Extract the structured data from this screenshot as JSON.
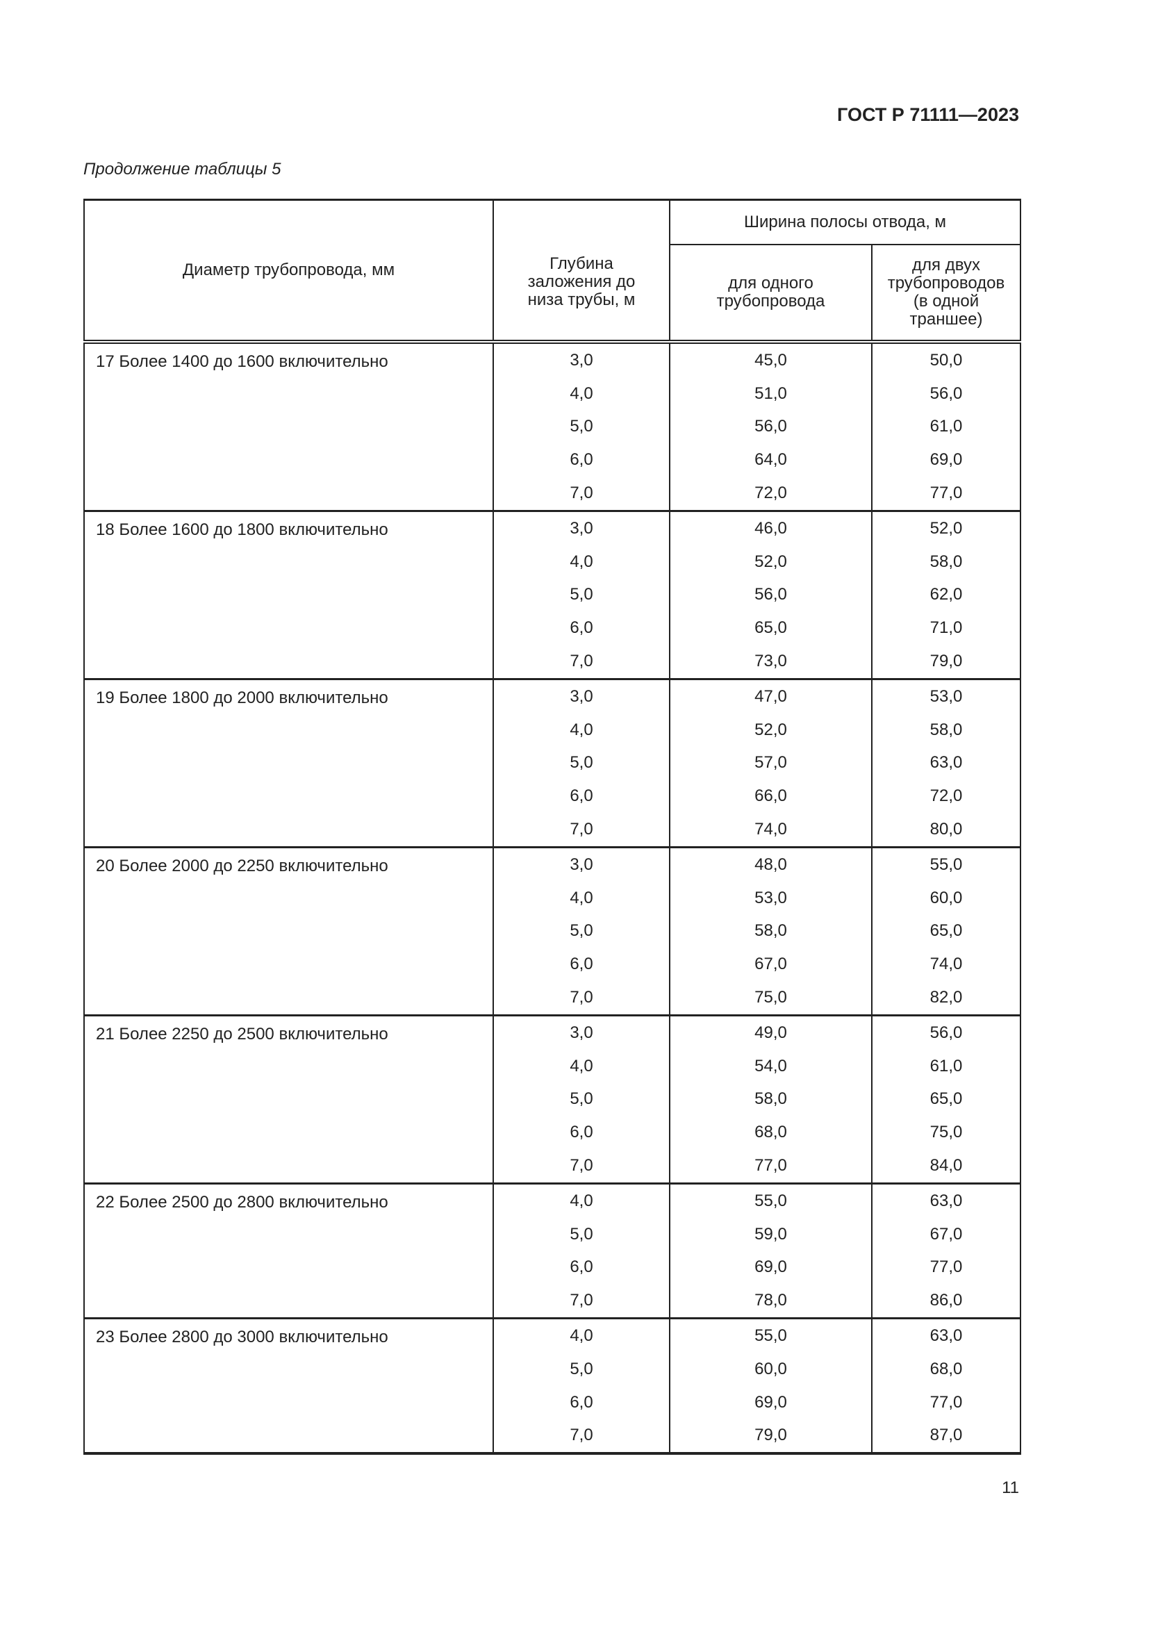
{
  "header": {
    "doc_code": "ГОСТ Р 71111—2023"
  },
  "caption": "Продолжение таблицы 5",
  "table": {
    "headers": {
      "diameter": "Диаметр трубопровода, мм",
      "depth": "Глубина заложения до низа трубы, м",
      "width_group": "Ширина полосы отвода, м",
      "single": "для одного трубопровода",
      "double": "для двух трубопроводов (в одной траншее)"
    },
    "groups": [
      {
        "name": "17  Более 1400 до 1600 включительно",
        "rows": [
          [
            "3,0",
            "45,0",
            "50,0"
          ],
          [
            "4,0",
            "51,0",
            "56,0"
          ],
          [
            "5,0",
            "56,0",
            "61,0"
          ],
          [
            "6,0",
            "64,0",
            "69,0"
          ],
          [
            "7,0",
            "72,0",
            "77,0"
          ]
        ]
      },
      {
        "name": "18  Более 1600 до 1800 включительно",
        "rows": [
          [
            "3,0",
            "46,0",
            "52,0"
          ],
          [
            "4,0",
            "52,0",
            "58,0"
          ],
          [
            "5,0",
            "56,0",
            "62,0"
          ],
          [
            "6,0",
            "65,0",
            "71,0"
          ],
          [
            "7,0",
            "73,0",
            "79,0"
          ]
        ]
      },
      {
        "name": "19  Более 1800 до 2000 включительно",
        "rows": [
          [
            "3,0",
            "47,0",
            "53,0"
          ],
          [
            "4,0",
            "52,0",
            "58,0"
          ],
          [
            "5,0",
            "57,0",
            "63,0"
          ],
          [
            "6,0",
            "66,0",
            "72,0"
          ],
          [
            "7,0",
            "74,0",
            "80,0"
          ]
        ]
      },
      {
        "name": "20  Более 2000 до 2250 включительно",
        "rows": [
          [
            "3,0",
            "48,0",
            "55,0"
          ],
          [
            "4,0",
            "53,0",
            "60,0"
          ],
          [
            "5,0",
            "58,0",
            "65,0"
          ],
          [
            "6,0",
            "67,0",
            "74,0"
          ],
          [
            "7,0",
            "75,0",
            "82,0"
          ]
        ]
      },
      {
        "name": "21  Более 2250 до 2500 включительно",
        "rows": [
          [
            "3,0",
            "49,0",
            "56,0"
          ],
          [
            "4,0",
            "54,0",
            "61,0"
          ],
          [
            "5,0",
            "58,0",
            "65,0"
          ],
          [
            "6,0",
            "68,0",
            "75,0"
          ],
          [
            "7,0",
            "77,0",
            "84,0"
          ]
        ]
      },
      {
        "name": "22  Более 2500 до 2800 включительно",
        "rows": [
          [
            "4,0",
            "55,0",
            "63,0"
          ],
          [
            "5,0",
            "59,0",
            "67,0"
          ],
          [
            "6,0",
            "69,0",
            "77,0"
          ],
          [
            "7,0",
            "78,0",
            "86,0"
          ]
        ]
      },
      {
        "name": "23  Более 2800 до 3000 включительно",
        "rows": [
          [
            "4,0",
            "55,0",
            "63,0"
          ],
          [
            "5,0",
            "60,0",
            "68,0"
          ],
          [
            "6,0",
            "69,0",
            "77,0"
          ],
          [
            "7,0",
            "79,0",
            "87,0"
          ]
        ]
      }
    ]
  },
  "page_number": "11"
}
